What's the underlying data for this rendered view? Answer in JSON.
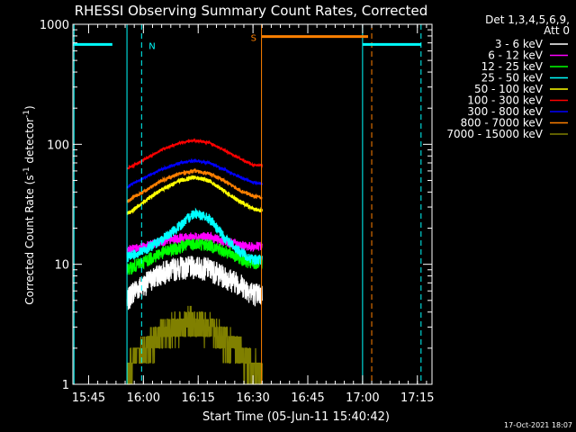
{
  "chart_data": {
    "type": "line",
    "title": "RHESSI Observing Summary Count Rates, Corrected",
    "xlabel": "Start Time (05-Jun-11 15:40:42)",
    "ylabel_main": "Corrected Count Rate (s",
    "ylabel_sup1": "-1",
    "ylabel_mid": " detector",
    "ylabel_sup2": "-1",
    "ylabel_end": ")",
    "yscale": "log",
    "ylim": [
      1,
      1000
    ],
    "xlim_minutes_after_1540": [
      0.7,
      99
    ],
    "x_ticks": [
      "15:45",
      "16:00",
      "16:15",
      "16:30",
      "16:45",
      "17:00",
      "17:15"
    ],
    "y_ticks": [
      "1",
      "10",
      "100",
      "1000"
    ],
    "legend_header": [
      "Det 1,3,4,5,6,9,",
      "Att 0"
    ],
    "legend_placement": "right",
    "footer_date": "17-Oct-2021 18:07",
    "flags": [
      {
        "label": "N",
        "color": "#00ffff",
        "start": "15:40:42",
        "end": "15:51:30",
        "level": 680
      },
      {
        "label": "S",
        "color": "#ff8000",
        "start": "16:32:20",
        "end": "17:01:30",
        "level": 790
      },
      {
        "label": "",
        "color": "#00ffff",
        "start": "17:00",
        "end": "17:16",
        "level": 680
      }
    ],
    "vlines_dashed": [
      {
        "time": "15:59:30",
        "color": "#00ffff"
      },
      {
        "time": "17:02:30",
        "color": "#ff8000"
      },
      {
        "time": "17:16:00",
        "color": "#00ffff"
      }
    ],
    "vlines_solid": [
      {
        "time": "15:41:00",
        "color": "#00ffff"
      },
      {
        "time": "15:55:30",
        "color": "#00ffff"
      },
      {
        "time": "16:32:20",
        "color": "#ff8000"
      },
      {
        "time": "17:00:00",
        "color": "#00ffff"
      }
    ],
    "series": [
      {
        "name": "3 - 6 keV",
        "color": "#ffffff",
        "lines": "#000000",
        "points": [
          [
            15.5,
            4.9
          ],
          [
            17,
            6
          ],
          [
            20,
            6.8
          ],
          [
            25,
            8.6
          ],
          [
            30,
            9.5
          ],
          [
            34,
            9.6
          ],
          [
            38,
            9.3
          ],
          [
            42,
            8
          ],
          [
            46,
            7.1
          ],
          [
            50,
            5.8
          ],
          [
            52.5,
            5.6
          ]
        ]
      },
      {
        "name": "6 - 12 keV",
        "color": "#ff00ff",
        "points": [
          [
            15.5,
            13
          ],
          [
            17,
            13.5
          ],
          [
            20,
            14
          ],
          [
            25,
            15.5
          ],
          [
            30,
            16.5
          ],
          [
            34,
            17
          ],
          [
            38,
            17
          ],
          [
            42,
            15.5
          ],
          [
            46,
            14.5
          ],
          [
            50,
            14
          ],
          [
            52.5,
            14.3
          ]
        ]
      },
      {
        "name": "12 - 25 keV",
        "color": "#00ff00",
        "points": [
          [
            15.5,
            9
          ],
          [
            17,
            9.5
          ],
          [
            20,
            10.5
          ],
          [
            25,
            12.5
          ],
          [
            30,
            14
          ],
          [
            34,
            15
          ],
          [
            38,
            14.5
          ],
          [
            42,
            13
          ],
          [
            46,
            11.5
          ],
          [
            50,
            10
          ],
          [
            52.5,
            10.5
          ]
        ]
      },
      {
        "name": "25 - 50 keV",
        "color": "#00ffff",
        "points": [
          [
            15.5,
            11.5
          ],
          [
            17,
            12
          ],
          [
            20,
            13
          ],
          [
            25,
            16
          ],
          [
            30,
            21
          ],
          [
            34,
            27
          ],
          [
            38,
            24
          ],
          [
            42,
            17
          ],
          [
            46,
            13
          ],
          [
            50,
            11
          ],
          [
            52.5,
            11
          ]
        ]
      },
      {
        "name": "50 - 100 keV",
        "color": "#ffff00",
        "points": [
          [
            15.5,
            26
          ],
          [
            17,
            28
          ],
          [
            20,
            33
          ],
          [
            25,
            42
          ],
          [
            30,
            50
          ],
          [
            34,
            53
          ],
          [
            38,
            50
          ],
          [
            42,
            41
          ],
          [
            46,
            34
          ],
          [
            50,
            29
          ],
          [
            52.5,
            28
          ]
        ]
      },
      {
        "name": "100 - 300 keV",
        "color": "#ff0000",
        "points": [
          [
            15.5,
            63
          ],
          [
            17,
            66
          ],
          [
            20,
            74
          ],
          [
            25,
            90
          ],
          [
            30,
            103
          ],
          [
            34,
            108
          ],
          [
            38,
            103
          ],
          [
            42,
            90
          ],
          [
            46,
            77
          ],
          [
            50,
            67
          ],
          [
            52.5,
            67
          ]
        ]
      },
      {
        "name": "300 - 800 keV",
        "color": "#0000ff",
        "points": [
          [
            15.5,
            44
          ],
          [
            17,
            47
          ],
          [
            20,
            52
          ],
          [
            25,
            62
          ],
          [
            30,
            70
          ],
          [
            34,
            73
          ],
          [
            38,
            70
          ],
          [
            42,
            62
          ],
          [
            46,
            54
          ],
          [
            50,
            48
          ],
          [
            52.5,
            47
          ]
        ]
      },
      {
        "name": "800 - 7000 keV",
        "color": "#ff8000",
        "points": [
          [
            15.5,
            33
          ],
          [
            17,
            36
          ],
          [
            20,
            40
          ],
          [
            25,
            50
          ],
          [
            30,
            57
          ],
          [
            34,
            60
          ],
          [
            38,
            57
          ],
          [
            42,
            50
          ],
          [
            46,
            42
          ],
          [
            50,
            37
          ],
          [
            52.5,
            36
          ]
        ]
      },
      {
        "name": "7000 - 15000 keV",
        "color": "#808000",
        "points": [
          [
            15.5,
            1.2
          ],
          [
            17,
            1.6
          ],
          [
            20,
            2
          ],
          [
            25,
            2.6
          ],
          [
            30,
            3.2
          ],
          [
            34,
            3.4
          ],
          [
            38,
            3
          ],
          [
            42,
            2.4
          ],
          [
            46,
            1.9
          ],
          [
            50,
            1.4
          ],
          [
            52.5,
            1.3
          ]
        ]
      }
    ]
  }
}
